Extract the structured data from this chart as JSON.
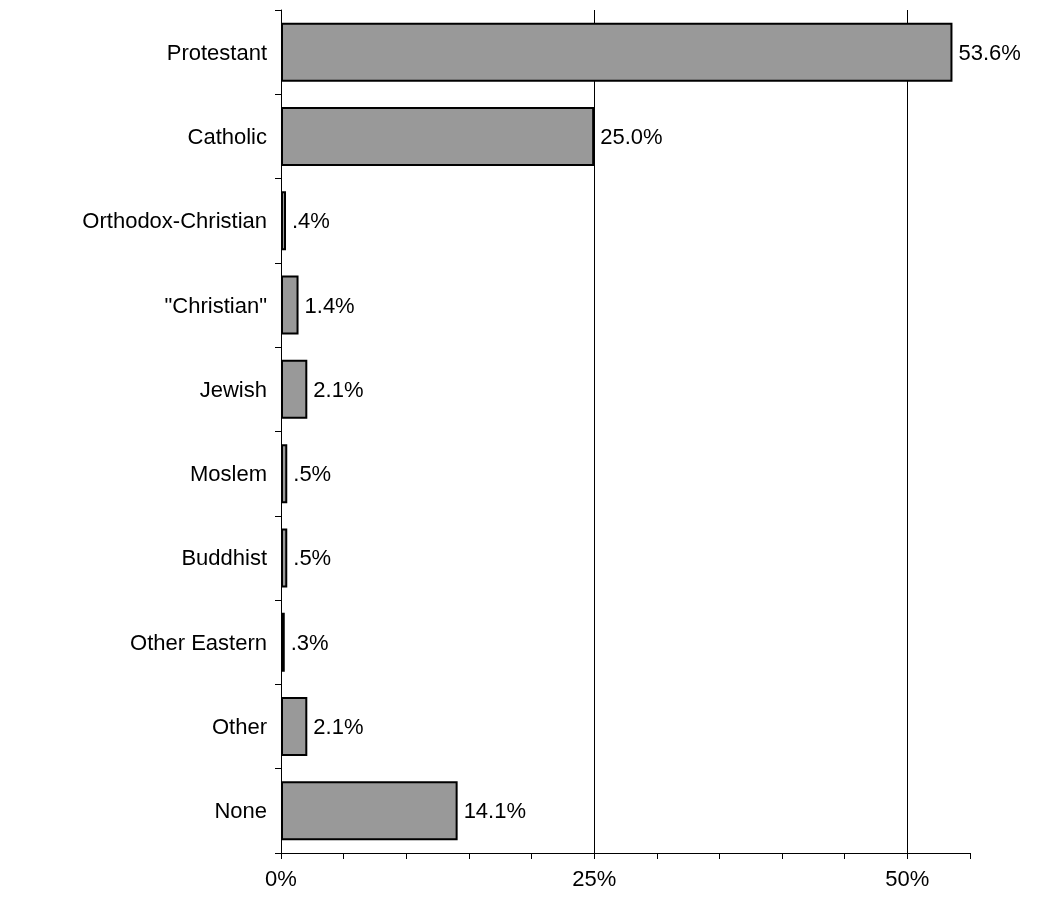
{
  "chart_data": {
    "type": "bar",
    "orientation": "horizontal",
    "categories": [
      "Protestant",
      "Catholic",
      "Orthodox-Christian",
      "\"Christian\"",
      "Jewish",
      "Moslem",
      "Buddhist",
      "Other Eastern",
      "Other",
      "None"
    ],
    "values": [
      53.6,
      25.0,
      0.4,
      1.4,
      2.1,
      0.5,
      0.5,
      0.3,
      2.1,
      14.1
    ],
    "value_labels": [
      "53.6%",
      "25.0%",
      ".4%",
      "1.4%",
      "2.1%",
      ".5%",
      ".5%",
      ".3%",
      "2.1%",
      "14.1%"
    ],
    "color": "#999999",
    "xlim": [
      0,
      55
    ],
    "xticks": [
      {
        "value": 0,
        "label": "0%"
      },
      {
        "value": 5,
        "label": null
      },
      {
        "value": 10,
        "label": null
      },
      {
        "value": 15,
        "label": null
      },
      {
        "value": 20,
        "label": null
      },
      {
        "value": 25,
        "label": "25%"
      },
      {
        "value": 30,
        "label": null
      },
      {
        "value": 35,
        "label": null
      },
      {
        "value": 40,
        "label": null
      },
      {
        "value": 45,
        "label": null
      },
      {
        "value": 50,
        "label": "50%"
      },
      {
        "value": 55,
        "label": null
      }
    ],
    "grid": "x"
  }
}
